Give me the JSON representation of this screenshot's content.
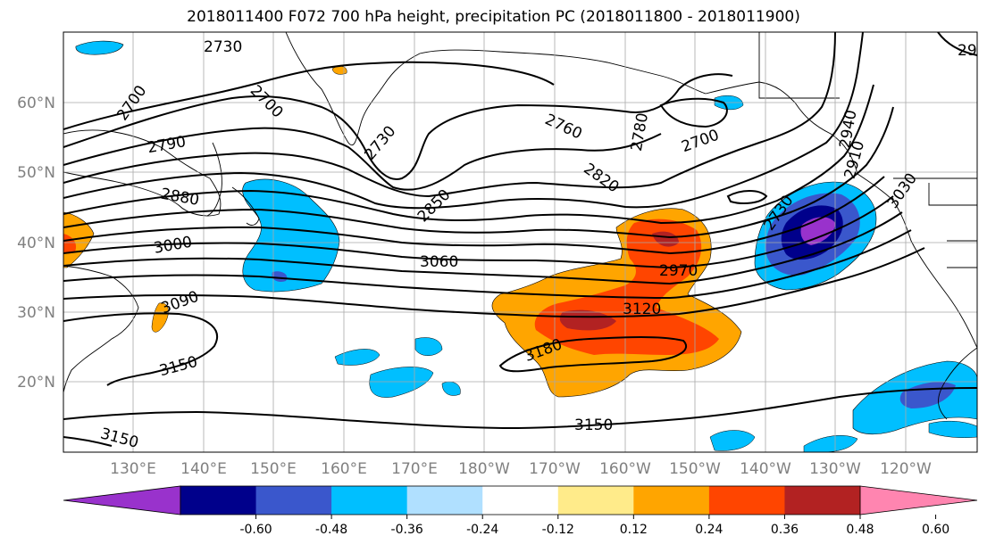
{
  "title": "2018011400 F072 700 hPa height, precipitation PC (2018011800 - 2018011900)",
  "latitude_labels": [
    "60°N",
    "50°N",
    "40°N",
    "30°N",
    "20°N"
  ],
  "longitude_labels": [
    "130°E",
    "140°E",
    "150°E",
    "160°E",
    "170°E",
    "180°W",
    "170°W",
    "160°W",
    "150°W",
    "140°W",
    "130°W",
    "120°W"
  ],
  "height_contour_labels": [
    "2730",
    "2700",
    "2700",
    "2730",
    "2790",
    "2880",
    "3000",
    "3090",
    "3150",
    "3150",
    "3060",
    "2850",
    "2760",
    "2780",
    "2700",
    "2820",
    "2730",
    "2970",
    "3120",
    "3180",
    "3150",
    "2910",
    "3030",
    "2940",
    "29"
  ],
  "colorbar": {
    "tick_labels": [
      "-0.60",
      "-0.48",
      "-0.36",
      "-0.24",
      "-0.12",
      "0.12",
      "0.24",
      "0.36",
      "0.48",
      "0.60"
    ],
    "colors": [
      "#9932CC",
      "#00008B",
      "#3A57CC",
      "#00BFFF",
      "#B0E0FF",
      "#FFFFFF",
      "#FFEB8A",
      "#FFA500",
      "#FF4500",
      "#B22222",
      "#FF85B0"
    ]
  },
  "precip_colors": {
    "neg_strong": "#9932CC",
    "neg_dark": "#00008B",
    "neg_mid": "#3A57CC",
    "neg_light": "#00BFFF",
    "pos_light": "#FFA500",
    "pos_mid": "#FF4500",
    "pos_dark": "#B22222"
  }
}
